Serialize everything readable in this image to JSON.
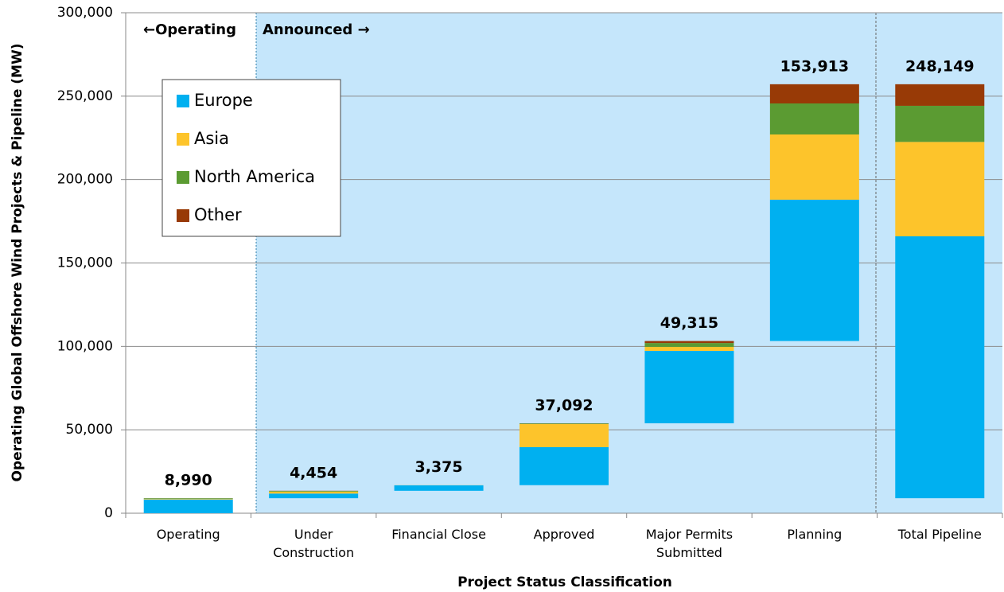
{
  "chart_data": {
    "type": "waterfall-stacked-bar",
    "xlabel": "Project Status Classification",
    "ylabel": "Operating Global Offshore Wind Projects & Pipeline (MW)",
    "annotations": [
      "←Operating",
      "Announced →"
    ],
    "categories": [
      "Operating",
      "Under Construction",
      "Financial Close",
      "Approved",
      "Major Permits Submitted",
      "Planning",
      "Total Pipeline"
    ],
    "series": [
      {
        "name": "Europe",
        "color": "#00b0f0",
        "values": [
          8200,
          2800,
          3300,
          22800,
          43400,
          84700,
          157000
        ]
      },
      {
        "name": "Asia",
        "color": "#fdc42b",
        "values": [
          300,
          1200,
          75,
          13800,
          2400,
          39100,
          56575
        ]
      },
      {
        "name": "North America",
        "color": "#5b9b32",
        "values": [
          450,
          350,
          0,
          400,
          2300,
          18600,
          21650
        ]
      },
      {
        "name": "Other",
        "color": "#983a06",
        "values": [
          40,
          104,
          0,
          92,
          1215,
          11513,
          12924
        ]
      }
    ],
    "totals": [
      8990,
      4454,
      3375,
      37092,
      49315,
      153913,
      248149
    ],
    "value_labels": [
      "8,990",
      "4,454",
      "3,375",
      "37,092",
      "49,315",
      "153,913",
      "248,149"
    ],
    "ylim": [
      0,
      300000
    ],
    "yticks": [
      0,
      {
        "value": 50000,
        "label": "50,000"
      },
      {
        "value": 100000,
        "label": "100,000"
      },
      {
        "value": 150000,
        "label": "150,000"
      },
      {
        "value": 200000,
        "label": "200,000"
      },
      {
        "value": 250000,
        "label": "250,000"
      },
      {
        "value": 300000,
        "label": "300,000"
      }
    ],
    "grid": true,
    "legend": "upper left"
  }
}
